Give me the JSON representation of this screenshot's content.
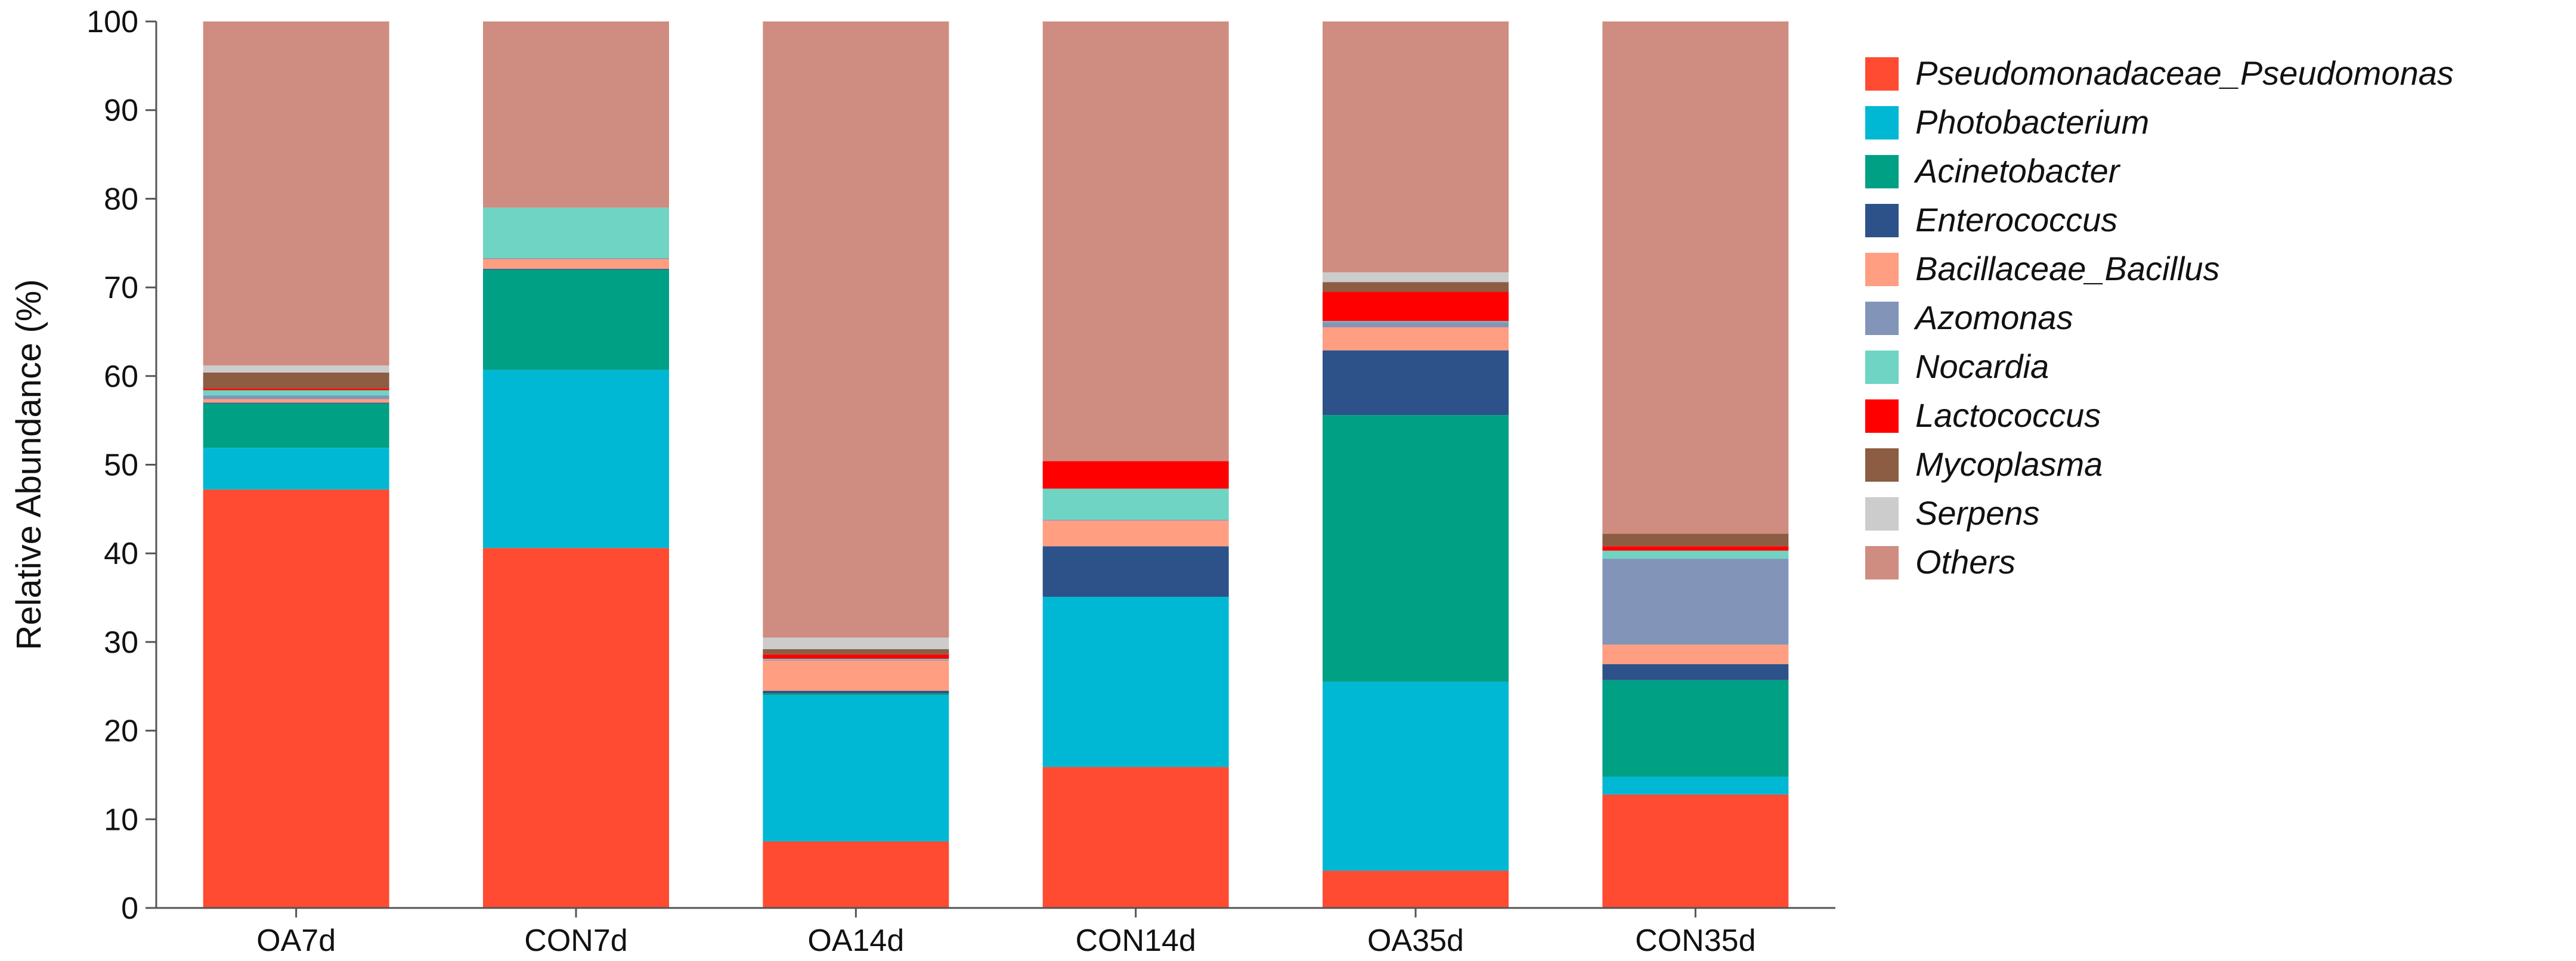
{
  "chart_data": {
    "type": "bar",
    "stacked": true,
    "title": "",
    "xlabel": "",
    "ylabel": "Relative Abundance (%)",
    "ylim": [
      0,
      100
    ],
    "yticks": [
      0,
      10,
      20,
      30,
      40,
      50,
      60,
      70,
      80,
      90,
      100
    ],
    "grid": false,
    "legend_position": "right",
    "categories": [
      "OA7d",
      "CON7d",
      "OA14d",
      "CON14d",
      "OA35d",
      "CON35d"
    ],
    "series": [
      {
        "name": "Pseudomonadaceae_Pseudomonas",
        "color": "#ff4b31",
        "values": [
          47.2,
          40.6,
          7.5,
          15.9,
          4.2,
          12.8
        ]
      },
      {
        "name": "Photobacterium",
        "color": "#00b8d4",
        "values": [
          4.7,
          20.1,
          16.5,
          19.2,
          21.3,
          2.0
        ]
      },
      {
        "name": "Acinetobacter",
        "color": "#00a084",
        "values": [
          5.0,
          11.3,
          0.2,
          0.0,
          30.1,
          10.9
        ]
      },
      {
        "name": "Enterococcus",
        "color": "#2c5289",
        "values": [
          0.1,
          0.1,
          0.3,
          5.7,
          7.3,
          1.8
        ]
      },
      {
        "name": "Bacillaceae_Bacillus",
        "color": "#ff9e81",
        "values": [
          0.4,
          1.1,
          3.4,
          2.9,
          2.6,
          2.2
        ]
      },
      {
        "name": "Azomonas",
        "color": "#8295b8",
        "values": [
          0.4,
          0.1,
          0.1,
          0.1,
          0.6,
          9.7
        ]
      },
      {
        "name": "Nocardia",
        "color": "#6fd4c3",
        "values": [
          0.6,
          5.7,
          0.1,
          3.5,
          0.1,
          0.9
        ]
      },
      {
        "name": "Lactococcus",
        "color": "#ff0000",
        "values": [
          0.2,
          0.0,
          0.5,
          3.1,
          3.3,
          0.5
        ]
      },
      {
        "name": "Mycoplasma",
        "color": "#8c5c43",
        "values": [
          1.8,
          0.0,
          0.6,
          0.0,
          1.1,
          1.4
        ]
      },
      {
        "name": "Serpens",
        "color": "#cccccc",
        "values": [
          0.8,
          0.0,
          1.3,
          0.0,
          1.1,
          0.0
        ]
      },
      {
        "name": "Others",
        "color": "#cf8c80",
        "values": [
          38.8,
          21.0,
          69.5,
          49.6,
          28.3,
          57.8
        ]
      }
    ]
  }
}
